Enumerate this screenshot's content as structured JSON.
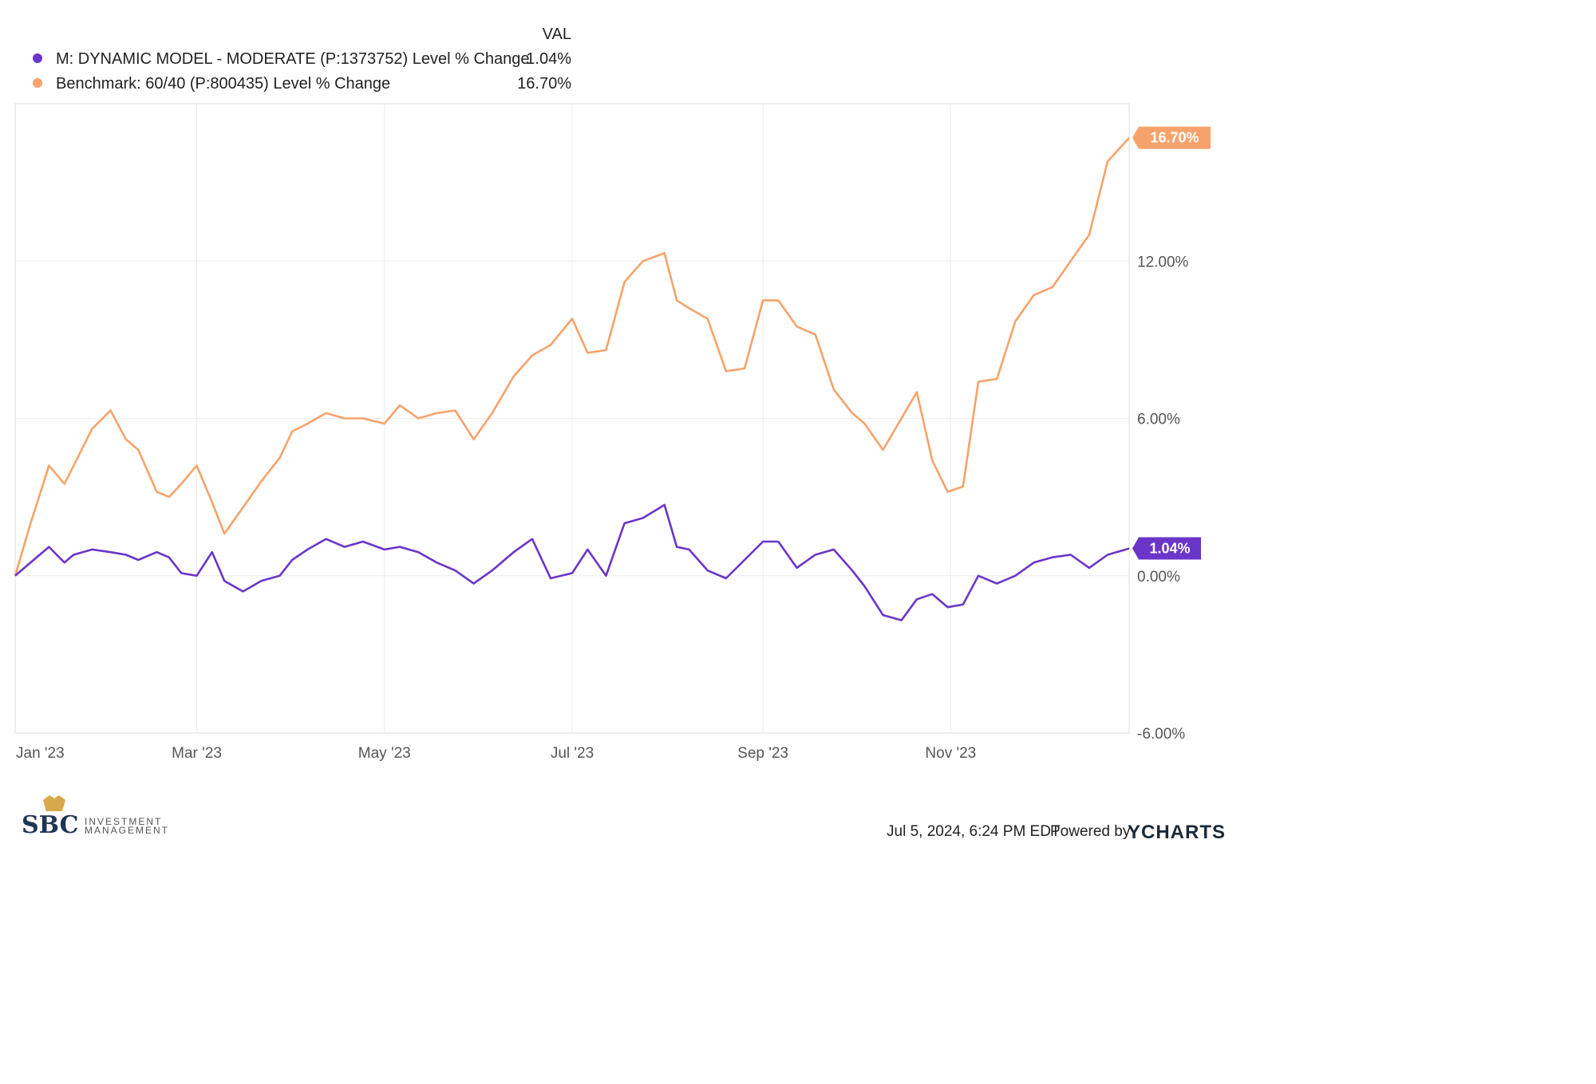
{
  "chart_data": {
    "type": "line",
    "x_ticks": [
      "Jan '23",
      "Mar '23",
      "May '23",
      "Jul '23",
      "Sep '23",
      "Nov '23"
    ],
    "x_tick_dates": [
      "2023-01-01",
      "2023-03-01",
      "2023-05-01",
      "2023-07-01",
      "2023-09-01",
      "2023-11-01"
    ],
    "x_range": [
      "2023-01-01",
      "2023-12-29"
    ],
    "y_ticks": [
      "-6.00%",
      "0.00%",
      "6.00%",
      "12.00%"
    ],
    "y_tick_values": [
      -6,
      0,
      6,
      12
    ],
    "ylim": [
      -6,
      18
    ],
    "y_axis_side": "right",
    "grid": true,
    "legend_placement": "top-left",
    "legend_header": "VAL",
    "series": [
      {
        "name": "M: DYNAMIC MODEL - MODERATE (P:1373752) Level % Change",
        "value_label": "1.04%",
        "color": "#6a35c9",
        "x": [
          "2023-01-01",
          "2023-01-06",
          "2023-01-12",
          "2023-01-17",
          "2023-01-20",
          "2023-01-26",
          "2023-02-01",
          "2023-02-06",
          "2023-02-10",
          "2023-02-16",
          "2023-02-20",
          "2023-02-24",
          "2023-03-01",
          "2023-03-06",
          "2023-03-10",
          "2023-03-16",
          "2023-03-22",
          "2023-03-28",
          "2023-04-01",
          "2023-04-06",
          "2023-04-12",
          "2023-04-18",
          "2023-04-24",
          "2023-05-01",
          "2023-05-06",
          "2023-05-12",
          "2023-05-18",
          "2023-05-24",
          "2023-05-30",
          "2023-06-05",
          "2023-06-12",
          "2023-06-18",
          "2023-06-24",
          "2023-07-01",
          "2023-07-06",
          "2023-07-12",
          "2023-07-18",
          "2023-07-24",
          "2023-07-31",
          "2023-08-04",
          "2023-08-08",
          "2023-08-14",
          "2023-08-20",
          "2023-08-26",
          "2023-09-01",
          "2023-09-06",
          "2023-09-12",
          "2023-09-18",
          "2023-09-24",
          "2023-09-30",
          "2023-10-04",
          "2023-10-10",
          "2023-10-16",
          "2023-10-21",
          "2023-10-26",
          "2023-10-31",
          "2023-11-05",
          "2023-11-10",
          "2023-11-16",
          "2023-11-22",
          "2023-11-28",
          "2023-12-04",
          "2023-12-10",
          "2023-12-16",
          "2023-12-22",
          "2023-12-29"
        ],
        "y": [
          0.0,
          0.5,
          1.1,
          0.5,
          0.8,
          1.0,
          0.9,
          0.8,
          0.6,
          0.9,
          0.7,
          0.1,
          0.0,
          0.9,
          -0.2,
          -0.6,
          -0.2,
          0.0,
          0.6,
          1.0,
          1.4,
          1.1,
          1.3,
          1.0,
          1.1,
          0.9,
          0.5,
          0.2,
          -0.3,
          0.2,
          0.9,
          1.4,
          -0.1,
          0.1,
          1.0,
          0.0,
          2.0,
          2.2,
          2.7,
          1.1,
          1.0,
          0.2,
          -0.1,
          0.6,
          1.3,
          1.3,
          0.3,
          0.8,
          1.0,
          0.2,
          -0.4,
          -1.5,
          -1.7,
          -0.9,
          -0.7,
          -1.2,
          -1.1,
          0.0,
          -0.3,
          0.0,
          0.5,
          0.7,
          0.8,
          0.3,
          0.8,
          1.04
        ]
      },
      {
        "name": "Benchmark: 60/40 (P:800435) Level % Change",
        "value_label": "16.70%",
        "color": "#f7a26b",
        "x": [
          "2023-01-01",
          "2023-01-06",
          "2023-01-12",
          "2023-01-17",
          "2023-01-20",
          "2023-01-26",
          "2023-02-01",
          "2023-02-06",
          "2023-02-10",
          "2023-02-16",
          "2023-02-20",
          "2023-02-24",
          "2023-03-01",
          "2023-03-06",
          "2023-03-10",
          "2023-03-16",
          "2023-03-22",
          "2023-03-28",
          "2023-04-01",
          "2023-04-06",
          "2023-04-12",
          "2023-04-18",
          "2023-04-24",
          "2023-05-01",
          "2023-05-06",
          "2023-05-12",
          "2023-05-18",
          "2023-05-24",
          "2023-05-30",
          "2023-06-05",
          "2023-06-12",
          "2023-06-18",
          "2023-06-24",
          "2023-07-01",
          "2023-07-06",
          "2023-07-12",
          "2023-07-18",
          "2023-07-24",
          "2023-07-31",
          "2023-08-04",
          "2023-08-08",
          "2023-08-14",
          "2023-08-20",
          "2023-08-26",
          "2023-09-01",
          "2023-09-06",
          "2023-09-12",
          "2023-09-18",
          "2023-09-24",
          "2023-09-30",
          "2023-10-04",
          "2023-10-10",
          "2023-10-16",
          "2023-10-21",
          "2023-10-26",
          "2023-10-31",
          "2023-11-05",
          "2023-11-10",
          "2023-11-16",
          "2023-11-22",
          "2023-11-28",
          "2023-12-04",
          "2023-12-10",
          "2023-12-16",
          "2023-12-22",
          "2023-12-29"
        ],
        "y": [
          0.0,
          2.0,
          4.2,
          3.5,
          4.2,
          5.6,
          6.3,
          5.2,
          4.8,
          3.2,
          3.0,
          3.5,
          4.2,
          2.8,
          1.6,
          2.6,
          3.6,
          4.5,
          5.5,
          5.8,
          6.2,
          6.0,
          6.0,
          5.8,
          6.5,
          6.0,
          6.2,
          6.3,
          5.2,
          6.2,
          7.6,
          8.4,
          8.8,
          9.8,
          8.5,
          8.6,
          11.2,
          12.0,
          12.3,
          10.5,
          10.2,
          9.8,
          7.8,
          7.9,
          10.5,
          10.5,
          9.5,
          9.2,
          7.1,
          6.2,
          5.8,
          4.8,
          6.0,
          7.0,
          4.4,
          3.2,
          3.4,
          7.4,
          7.5,
          9.7,
          10.7,
          11.0,
          12.0,
          13.0,
          15.8,
          16.7
        ]
      }
    ]
  },
  "footer": {
    "timestamp": "Jul 5, 2024, 6:24 PM EDT",
    "powered_by": "Powered by",
    "brand": "YCHARTS"
  },
  "logo": {
    "mark": "SBC",
    "line1": "INVESTMENT",
    "line2": "MANAGEMENT"
  }
}
